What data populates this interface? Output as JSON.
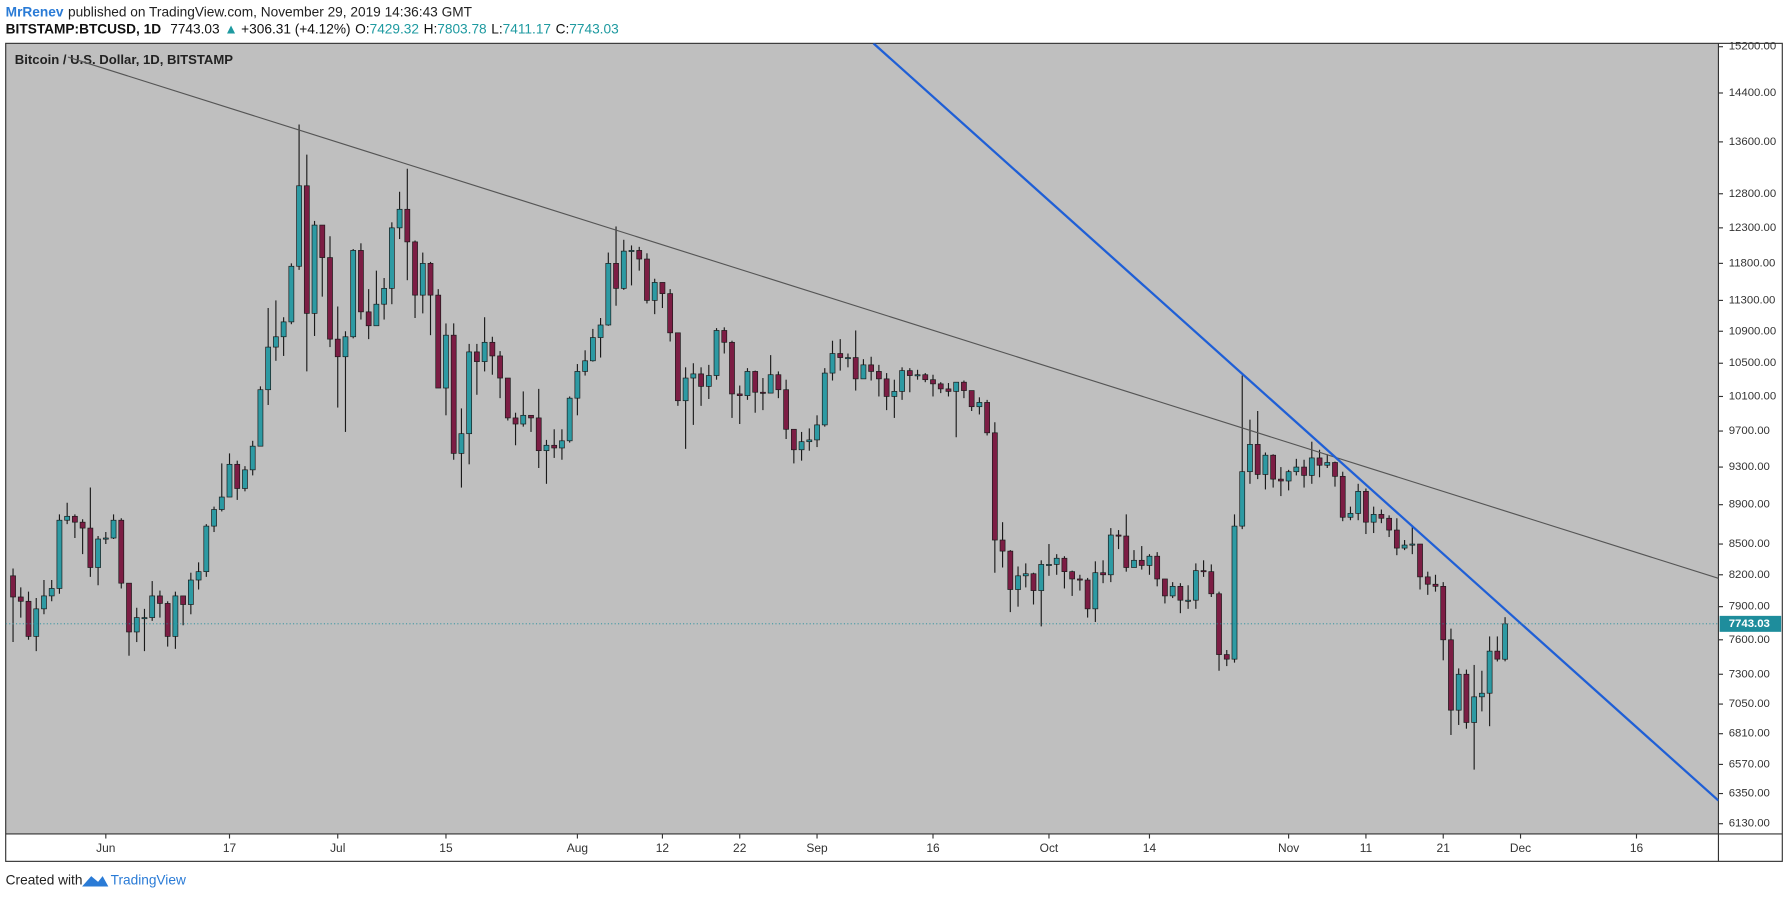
{
  "header": {
    "author": "MrRenev",
    "published": "published on TradingView.com, November 29, 2019 14:36:43 GMT",
    "symbol": "BITSTAMP:BTCUSD, 1D",
    "change_arrow": "▲",
    "change": "+306.31 (+4.12%)",
    "ohlc_labels": [
      "O:",
      "H:",
      "L:",
      "C:"
    ]
  },
  "footer": {
    "created": "Created with",
    "brand": "TradingView"
  },
  "chart_data": {
    "type": "candlestick",
    "title": "Bitcoin / U.S. Dollar, 1D, BITSTAMP",
    "log_scale": true,
    "grid": false,
    "up_color": "#2d9aa3",
    "down_color": "#7c1d44",
    "wick_color": "#1a1a1a",
    "last_color": "#1e8d9c",
    "xlim": [
      -0.95,
      220.6
    ],
    "ylim": [
      6057,
      15260
    ],
    "xticks": [
      {
        "value": 12,
        "label": "Jun"
      },
      {
        "value": 28,
        "label": "17"
      },
      {
        "value": 42,
        "label": "Jul"
      },
      {
        "value": 56,
        "label": "15"
      },
      {
        "value": 73,
        "label": "Aug"
      },
      {
        "value": 84,
        "label": "12"
      },
      {
        "value": 94,
        "label": "22"
      },
      {
        "value": 104,
        "label": "Sep"
      },
      {
        "value": 119,
        "label": "16"
      },
      {
        "value": 134,
        "label": "Oct"
      },
      {
        "value": 147,
        "label": "14"
      },
      {
        "value": 165,
        "label": "Nov"
      },
      {
        "value": 175,
        "label": "11"
      },
      {
        "value": 185,
        "label": "21"
      },
      {
        "value": 195,
        "label": "Dec"
      },
      {
        "value": 210,
        "label": "16"
      }
    ],
    "yticks": [
      {
        "value": 6130,
        "label": "6130.00"
      },
      {
        "value": 6350,
        "label": "6350.00"
      },
      {
        "value": 6570,
        "label": "6570.00"
      },
      {
        "value": 6810,
        "label": "6810.00"
      },
      {
        "value": 7050,
        "label": "7050.00"
      },
      {
        "value": 7300,
        "label": "7300.00"
      },
      {
        "value": 7600,
        "label": "7600.00"
      },
      {
        "value": 7900,
        "label": "7900.00"
      },
      {
        "value": 8200,
        "label": "8200.00"
      },
      {
        "value": 8500,
        "label": "8500.00"
      },
      {
        "value": 8900,
        "label": "8900.00"
      },
      {
        "value": 9300,
        "label": "9300.00"
      },
      {
        "value": 9700,
        "label": "9700.00"
      },
      {
        "value": 10100,
        "label": "10100.00"
      },
      {
        "value": 10500,
        "label": "10500.00"
      },
      {
        "value": 10900,
        "label": "10900.00"
      },
      {
        "value": 11300,
        "label": "11300.00"
      },
      {
        "value": 11800,
        "label": "11800.00"
      },
      {
        "value": 12300,
        "label": "12300.00"
      },
      {
        "value": 12800,
        "label": "12800.00"
      },
      {
        "value": 13600,
        "label": "13600.00"
      },
      {
        "value": 14400,
        "label": "14400.00"
      },
      {
        "value": 15200,
        "label": "15200.00"
      }
    ],
    "trendlines": [
      {
        "color": "#555555",
        "points": [
          [
            7.1,
            15018
          ],
          [
            220.6,
            8166
          ]
        ]
      },
      {
        "color": "#1f5fd6",
        "points": [
          [
            111.3,
            15260
          ],
          [
            220.6,
            6298
          ]
        ]
      }
    ],
    "candles": [
      [
        8190,
        8260,
        7580,
        7990
      ],
      [
        7990,
        8080,
        7800,
        7950
      ],
      [
        7950,
        8040,
        7600,
        7630
      ],
      [
        7630,
        7980,
        7500,
        7880
      ],
      [
        7880,
        8150,
        7830,
        8000
      ],
      [
        8000,
        8150,
        7950,
        8070
      ],
      [
        8070,
        8800,
        8020,
        8740
      ],
      [
        8740,
        8920,
        8700,
        8780
      ],
      [
        8780,
        8800,
        8560,
        8720
      ],
      [
        8720,
        8750,
        8400,
        8660
      ],
      [
        8660,
        9080,
        8180,
        8270
      ],
      [
        8270,
        8580,
        8100,
        8550
      ],
      [
        8550,
        8620,
        8500,
        8560
      ],
      [
        8560,
        8800,
        8550,
        8740
      ],
      [
        8740,
        8760,
        8070,
        8120
      ],
      [
        8120,
        8120,
        7460,
        7670
      ],
      [
        7670,
        7890,
        7580,
        7800
      ],
      [
        7800,
        7880,
        7500,
        7800
      ],
      [
        7800,
        8140,
        7770,
        8000
      ],
      [
        8000,
        8050,
        7800,
        7930
      ],
      [
        7930,
        7950,
        7540,
        7630
      ],
      [
        7630,
        8040,
        7520,
        8000
      ],
      [
        8000,
        8000,
        7730,
        7920
      ],
      [
        7920,
        8220,
        7830,
        8150
      ],
      [
        8150,
        8320,
        8060,
        8230
      ],
      [
        8230,
        8700,
        8180,
        8680
      ],
      [
        8680,
        8880,
        8620,
        8850
      ],
      [
        8850,
        9340,
        8830,
        8980
      ],
      [
        8980,
        9450,
        8980,
        9330
      ],
      [
        9330,
        9370,
        8950,
        9070
      ],
      [
        9070,
        9310,
        9040,
        9270
      ],
      [
        9270,
        9590,
        9210,
        9530
      ],
      [
        9530,
        10220,
        9530,
        10180
      ],
      [
        10180,
        11200,
        10000,
        10700
      ],
      [
        10700,
        11300,
        10530,
        10830
      ],
      [
        10830,
        11080,
        10590,
        11020
      ],
      [
        11020,
        11800,
        10990,
        11760
      ],
      [
        11760,
        13880,
        11710,
        12920
      ],
      [
        12920,
        13400,
        10400,
        11130
      ],
      [
        11130,
        12400,
        10840,
        12340
      ],
      [
        12340,
        12340,
        11350,
        11880
      ],
      [
        11880,
        12180,
        10700,
        10800
      ],
      [
        10800,
        11220,
        9970,
        10580
      ],
      [
        10580,
        10900,
        9690,
        10830
      ],
      [
        10830,
        12000,
        10810,
        11980
      ],
      [
        11980,
        12080,
        11050,
        11150
      ],
      [
        11150,
        11450,
        10800,
        10970
      ],
      [
        10970,
        11700,
        10970,
        11250
      ],
      [
        11250,
        11600,
        11050,
        11460
      ],
      [
        11460,
        12380,
        11250,
        12300
      ],
      [
        12300,
        12830,
        12140,
        12570
      ],
      [
        12570,
        13180,
        11570,
        12100
      ],
      [
        12100,
        12120,
        11070,
        11370
      ],
      [
        11370,
        11950,
        11130,
        11800
      ],
      [
        11800,
        11820,
        10850,
        11370
      ],
      [
        11370,
        11450,
        10200,
        10200
      ],
      [
        10200,
        11000,
        9880,
        10850
      ],
      [
        10850,
        11000,
        9380,
        9450
      ],
      [
        9450,
        9960,
        9080,
        9670
      ],
      [
        9670,
        10740,
        9330,
        10640
      ],
      [
        10640,
        10740,
        10120,
        10520
      ],
      [
        10520,
        11080,
        10400,
        10760
      ],
      [
        10760,
        10830,
        10360,
        10590
      ],
      [
        10590,
        10650,
        10080,
        10320
      ],
      [
        10320,
        10320,
        9820,
        9850
      ],
      [
        9850,
        9910,
        9540,
        9780
      ],
      [
        9780,
        10160,
        9750,
        9880
      ],
      [
        9880,
        9880,
        9690,
        9850
      ],
      [
        9850,
        10190,
        9290,
        9480
      ],
      [
        9480,
        9600,
        9120,
        9540
      ],
      [
        9540,
        9720,
        9400,
        9510
      ],
      [
        9510,
        9720,
        9380,
        9590
      ],
      [
        9590,
        10100,
        9570,
        10080
      ],
      [
        10080,
        10490,
        9880,
        10400
      ],
      [
        10400,
        10660,
        10350,
        10530
      ],
      [
        10530,
        10930,
        10520,
        10820
      ],
      [
        10820,
        11070,
        10570,
        10980
      ],
      [
        10980,
        11950,
        10970,
        11800
      ],
      [
        11800,
        12320,
        11230,
        11460
      ],
      [
        11460,
        12130,
        11440,
        11970
      ],
      [
        11970,
        12050,
        11500,
        11980
      ],
      [
        11980,
        12030,
        11700,
        11860
      ],
      [
        11860,
        11940,
        11260,
        11300
      ],
      [
        11300,
        11590,
        11120,
        11540
      ],
      [
        11540,
        11540,
        11200,
        11390
      ],
      [
        11390,
        11450,
        10770,
        10880
      ],
      [
        10880,
        10880,
        9990,
        10050
      ],
      [
        10050,
        10450,
        9500,
        10320
      ],
      [
        10320,
        10500,
        9770,
        10370
      ],
      [
        10370,
        10450,
        9990,
        10220
      ],
      [
        10220,
        10480,
        10070,
        10350
      ],
      [
        10350,
        10940,
        10300,
        10910
      ],
      [
        10910,
        10950,
        10620,
        10760
      ],
      [
        10760,
        10780,
        9850,
        10130
      ],
      [
        10130,
        10230,
        9780,
        10110
      ],
      [
        10110,
        10440,
        10060,
        10400
      ],
      [
        10400,
        10410,
        9910,
        10150
      ],
      [
        10150,
        10320,
        9940,
        10140
      ],
      [
        10140,
        10600,
        10140,
        10360
      ],
      [
        10360,
        10400,
        10080,
        10180
      ],
      [
        10180,
        10300,
        9610,
        9720
      ],
      [
        9720,
        9720,
        9340,
        9490
      ],
      [
        9490,
        9690,
        9370,
        9580
      ],
      [
        9580,
        9730,
        9480,
        9600
      ],
      [
        9600,
        9880,
        9520,
        9770
      ],
      [
        9770,
        10440,
        9750,
        10380
      ],
      [
        10380,
        10780,
        10290,
        10620
      ],
      [
        10620,
        10800,
        10410,
        10570
      ],
      [
        10570,
        10620,
        10450,
        10570
      ],
      [
        10570,
        10910,
        10170,
        10310
      ],
      [
        10310,
        10550,
        10310,
        10480
      ],
      [
        10480,
        10580,
        10290,
        10400
      ],
      [
        10400,
        10480,
        10100,
        10310
      ],
      [
        10310,
        10380,
        9940,
        10100
      ],
      [
        10100,
        10300,
        9850,
        10160
      ],
      [
        10160,
        10450,
        10060,
        10410
      ],
      [
        10410,
        10440,
        10150,
        10350
      ],
      [
        10350,
        10420,
        10300,
        10360
      ],
      [
        10360,
        10380,
        10270,
        10300
      ],
      [
        10300,
        10360,
        10100,
        10250
      ],
      [
        10250,
        10270,
        10140,
        10190
      ],
      [
        10190,
        10260,
        10100,
        10160
      ],
      [
        10160,
        10250,
        9630,
        10270
      ],
      [
        10270,
        10290,
        10080,
        10170
      ],
      [
        10170,
        10170,
        9930,
        9980
      ],
      [
        9980,
        10090,
        9890,
        10030
      ],
      [
        10030,
        10060,
        9650,
        9680
      ],
      [
        9680,
        9800,
        8220,
        8540
      ],
      [
        8540,
        8720,
        8270,
        8430
      ],
      [
        8430,
        8440,
        7850,
        8060
      ],
      [
        8060,
        8280,
        7900,
        8190
      ],
      [
        8190,
        8310,
        8080,
        8210
      ],
      [
        8210,
        8220,
        7920,
        8050
      ],
      [
        8050,
        8340,
        7720,
        8300
      ],
      [
        8300,
        8500,
        8190,
        8300
      ],
      [
        8300,
        8400,
        8200,
        8360
      ],
      [
        8360,
        8380,
        8070,
        8230
      ],
      [
        8230,
        8240,
        8000,
        8160
      ],
      [
        8160,
        8200,
        8050,
        8150
      ],
      [
        8150,
        8170,
        7800,
        7880
      ],
      [
        7880,
        8330,
        7760,
        8220
      ],
      [
        8220,
        8340,
        8120,
        8200
      ],
      [
        8200,
        8660,
        8130,
        8590
      ],
      [
        8590,
        8640,
        8450,
        8580
      ],
      [
        8580,
        8800,
        8230,
        8270
      ],
      [
        8270,
        8440,
        8270,
        8340
      ],
      [
        8340,
        8480,
        8250,
        8290
      ],
      [
        8290,
        8400,
        8200,
        8380
      ],
      [
        8380,
        8420,
        8090,
        8160
      ],
      [
        8160,
        8160,
        7930,
        8000
      ],
      [
        8000,
        8130,
        7980,
        8090
      ],
      [
        8090,
        8120,
        7840,
        7960
      ],
      [
        7960,
        8100,
        7880,
        7960
      ],
      [
        7960,
        8310,
        7880,
        8240
      ],
      [
        8240,
        8340,
        8180,
        8230
      ],
      [
        8230,
        8300,
        7990,
        8020
      ],
      [
        8020,
        8040,
        7330,
        7470
      ],
      [
        7470,
        7510,
        7370,
        7430
      ],
      [
        7430,
        8800,
        7400,
        8680
      ],
      [
        8680,
        10350,
        8650,
        9250
      ],
      [
        9250,
        9830,
        9120,
        9550
      ],
      [
        9550,
        9930,
        9170,
        9220
      ],
      [
        9220,
        9460,
        9060,
        9430
      ],
      [
        9430,
        9440,
        9080,
        9170
      ],
      [
        9170,
        9300,
        8990,
        9150
      ],
      [
        9150,
        9270,
        9050,
        9250
      ],
      [
        9250,
        9390,
        9210,
        9300
      ],
      [
        9300,
        9380,
        9080,
        9210
      ],
      [
        9210,
        9580,
        9120,
        9400
      ],
      [
        9400,
        9490,
        9190,
        9320
      ],
      [
        9320,
        9440,
        9290,
        9350
      ],
      [
        9350,
        9360,
        9090,
        9200
      ],
      [
        9200,
        9250,
        8730,
        8770
      ],
      [
        8770,
        8880,
        8740,
        8810
      ],
      [
        8810,
        9120,
        8740,
        9040
      ],
      [
        9040,
        9070,
        8600,
        8720
      ],
      [
        8720,
        8880,
        8610,
        8800
      ],
      [
        8800,
        8850,
        8710,
        8760
      ],
      [
        8760,
        8790,
        8570,
        8640
      ],
      [
        8640,
        8760,
        8390,
        8460
      ],
      [
        8460,
        8540,
        8440,
        8490
      ],
      [
        8490,
        8670,
        8400,
        8500
      ],
      [
        8500,
        8500,
        8060,
        8180
      ],
      [
        8180,
        8230,
        8010,
        8110
      ],
      [
        8110,
        8200,
        8040,
        8090
      ],
      [
        8090,
        8130,
        7420,
        7600
      ],
      [
        7600,
        7700,
        6800,
        7000
      ],
      [
        7000,
        7350,
        6880,
        7300
      ],
      [
        7300,
        7340,
        6850,
        6900
      ],
      [
        6900,
        7380,
        6530,
        7110
      ],
      [
        7110,
        7330,
        6990,
        7140
      ],
      [
        7140,
        7630,
        6870,
        7500
      ],
      [
        7500,
        7630,
        7410,
        7430
      ],
      [
        7429.32,
        7803.78,
        7411.17,
        7743.03
      ]
    ]
  }
}
